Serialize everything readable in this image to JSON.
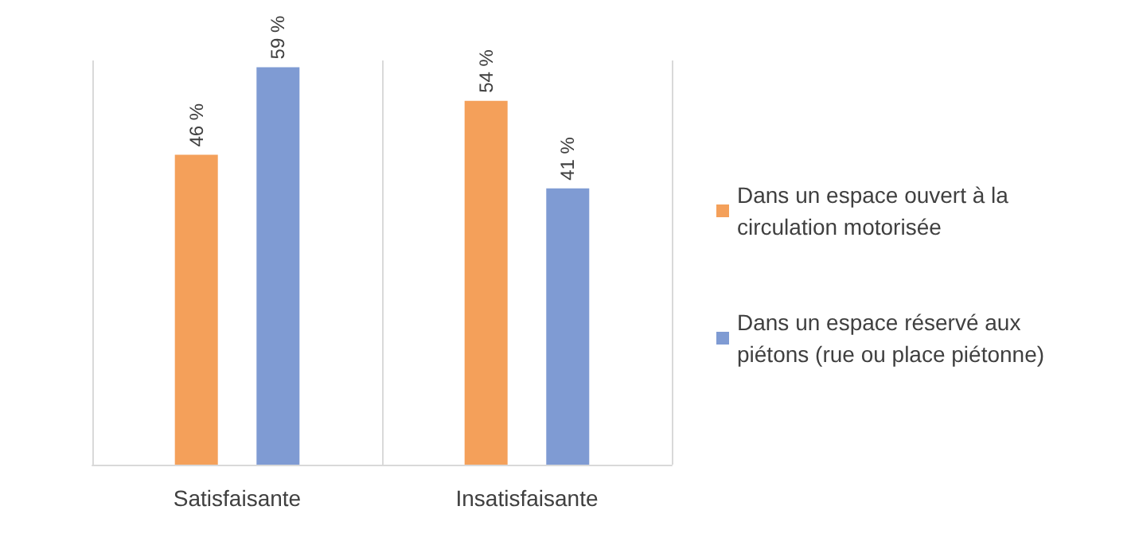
{
  "chart_data": {
    "type": "bar",
    "categories": [
      "Satisfaisante",
      "Insatisfaisante"
    ],
    "series": [
      {
        "name": "Dans un espace ouvert à la circulation motorisée",
        "color": "#f4a05a",
        "values": [
          46,
          54
        ],
        "value_labels": [
          "46 %",
          "54 %"
        ]
      },
      {
        "name": "Dans un espace réservé aux piétons (rue ou place piétonne)",
        "color": "#7f9bd3",
        "values": [
          59,
          41
        ],
        "value_labels": [
          "59 %",
          "41 %"
        ]
      }
    ],
    "grid": "x",
    "legend": "right"
  }
}
